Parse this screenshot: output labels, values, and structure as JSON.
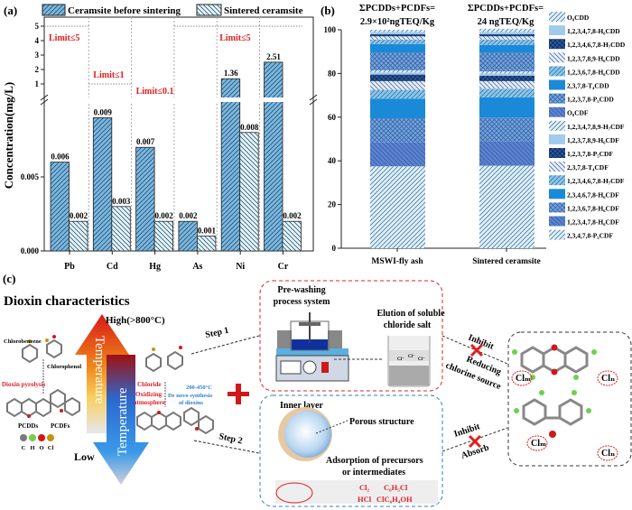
{
  "panel_labels": {
    "a": "(a)",
    "b": "(b)",
    "c": "(c)"
  },
  "chart_data": [
    {
      "type": "bar",
      "panel": "a",
      "ylabel": "Concentration(mg/L)",
      "categories": [
        "Pb",
        "Cd",
        "Hg",
        "As",
        "Ni",
        "Cr"
      ],
      "series": [
        {
          "name": "Ceramsite before sintering",
          "values": [
            0.006,
            0.009,
            0.007,
            0.002,
            1.36,
            2.51
          ],
          "labels": [
            "0.006",
            "0.009",
            "0.007",
            "0.002",
            "1.36",
            "2.51"
          ],
          "color": "#7ab8e0"
        },
        {
          "name": "Sintered ceramsite",
          "values": [
            0.002,
            0.003,
            0.002,
            0.001,
            0.008,
            0.002
          ],
          "labels": [
            "0.002",
            "0.003",
            "0.002",
            "0.001",
            "0.008",
            "0.002"
          ],
          "color": "#e2f5fb"
        }
      ],
      "yticks_lower": [
        "0.000",
        "0.005"
      ],
      "yticks_upper": [
        "1",
        "2",
        "3",
        "4",
        "5"
      ],
      "ylim_lower": [
        0,
        0.0095
      ],
      "ylim_upper": [
        0.1,
        5.6
      ],
      "limits": [
        {
          "label": "Limit≤5",
          "value": 5,
          "categories": [
            "Pb"
          ]
        },
        {
          "label": "Limit≤1",
          "value": 1,
          "categories": [
            "Cd"
          ]
        },
        {
          "label": "Limit≤0.1",
          "value": 0.1,
          "categories": [
            "Hg"
          ]
        },
        {
          "label": "Limit≤5",
          "value": 5,
          "categories": [
            "As",
            "Ni",
            "Cr"
          ]
        }
      ],
      "legend": "top"
    },
    {
      "type": "stacked-bar",
      "panel": "b",
      "categories": [
        "MSWI-fly ash",
        "Sintered ceramsite"
      ],
      "annotations": [
        {
          "line1": "ΣPCDDs+PCDFs=",
          "line2": "2.9×10²ngTEQ/Kg"
        },
        {
          "line1": "ΣPCDDs+PCDFs=",
          "line2": "24 ngTEQ/Kg"
        }
      ],
      "ylim": [
        0,
        100
      ],
      "yticks": [
        "0",
        "20",
        "40",
        "60",
        "80",
        "100"
      ],
      "legend": "right",
      "series_bottom_to_top": [
        {
          "name": "2,3,4,7,8-P₅CDF",
          "color": "#dcf2fa",
          "pattern": "fwd",
          "values": [
            37.5,
            37.8
          ]
        },
        {
          "name": "1,2,3,4,7,8-H₆CDF",
          "color": "#5a82d4",
          "pattern": "back",
          "values": [
            11,
            11
          ]
        },
        {
          "name": "1,2,3,6,7,8-H₆CDF",
          "color": "#6ea4e4",
          "pattern": "cross",
          "values": [
            11,
            11
          ]
        },
        {
          "name": "2,3,4,6,7,8-H₆CDF",
          "color": "#1a8ad8",
          "pattern": "solid",
          "values": [
            9,
            9.2
          ]
        },
        {
          "name": "1,2,3,4,6,7,8-H₇CDF",
          "color": "#86c8ec",
          "pattern": "fwd",
          "values": [
            4,
            4
          ]
        },
        {
          "name": "2,3,7,8-T₄CDF",
          "color": "#e6eefa",
          "pattern": "back",
          "values": [
            4,
            3.5
          ]
        },
        {
          "name": "1,2,3,7,8-P₅CDF",
          "color": "#2a5a9c",
          "pattern": "cross",
          "values": [
            3,
            2.5
          ]
        },
        {
          "name": "1,2,3,7,8,9-H₆CDF",
          "color": "#a0cbea",
          "pattern": "solid",
          "values": [
            1,
            1
          ]
        },
        {
          "name": "1,2,3,4,7,8,9-H₇CDF",
          "color": "#dcf2fa",
          "pattern": "fwd",
          "values": [
            1,
            1
          ]
        },
        {
          "name": "O₈CDF",
          "color": "#5a82d4",
          "pattern": "back",
          "values": [
            0.5,
            0.5
          ]
        },
        {
          "name": "1,2,3,7,8-P₅CDD",
          "color": "#6ea4e4",
          "pattern": "cross",
          "values": [
            7.5,
            8
          ]
        },
        {
          "name": "2,3,7,8-T₄CDD",
          "color": "#1a8ad8",
          "pattern": "solid",
          "values": [
            4,
            3.5
          ]
        },
        {
          "name": "1,2,3,6,7,8-H₆CDD",
          "color": "#86c8ec",
          "pattern": "fwd",
          "values": [
            2,
            2.5
          ]
        },
        {
          "name": "1,2,3,7,8,9-H₆CDD",
          "color": "#e6eefa",
          "pattern": "back",
          "values": [
            1.5,
            1.5
          ]
        },
        {
          "name": "1,2,3,4,6,7,8-H₇CDD",
          "color": "#2a5a9c",
          "pattern": "cross",
          "values": [
            1,
            1
          ]
        },
        {
          "name": "1,2,3,4,7,8-H₆CDD",
          "color": "#a0cbea",
          "pattern": "solid",
          "values": [
            1,
            1
          ]
        },
        {
          "name": "O₈CDD",
          "color": "#dcf2fa",
          "pattern": "fwd",
          "values": [
            1,
            1.5
          ]
        }
      ]
    }
  ],
  "panel_c": {
    "title": "Dioxin characteristics",
    "high": "High(>800°C)",
    "low": "Low",
    "temperature_up": "Temperature",
    "temperature_down": "Temperature",
    "chlorobenzene": "Chlorobenzene",
    "chlorophenol": "Chlorophenol",
    "dioxin_pyrolysis": "Dioxin pyrolysis",
    "pcdds": "PCDDs",
    "pcdfs": "PCDFs",
    "atoms": [
      "C",
      "H",
      "O",
      "Cl"
    ],
    "atom_colors": [
      "#7a7a7a",
      "#6fd04a",
      "#d01818",
      "#c89010"
    ],
    "chloride": "Chloride",
    "oxidizing1": "Oxidizing",
    "oxidizing2": "atmosphere",
    "temp_range": "200-450°C",
    "denovo1": "De novo synthesis",
    "denovo2": "of dioxins",
    "step1": "Step 1",
    "step2": "Step 2",
    "prewash1": "Pre-washing",
    "prewash2": "process system",
    "elution1": "Elution of soluble",
    "elution2": "chloride salt",
    "cl_ion": "Cl⁻",
    "inner_layer": "Inner layer",
    "porous": "Porous structure",
    "adsorption1": "Adsorption of precursors",
    "adsorption2": "or intermediates",
    "chemicals": [
      "Cl₂",
      "C₆H₅Cl",
      "HCl",
      "ClC₆H₄OH"
    ],
    "inhibit1": "Inhibit",
    "reducing1": "Reducing",
    "reducing2": "chlorine source",
    "inhibit2": "Inhibit",
    "absorb": "Absorb",
    "cl_m": "Clₘ",
    "cl_n": "Clₙ"
  }
}
